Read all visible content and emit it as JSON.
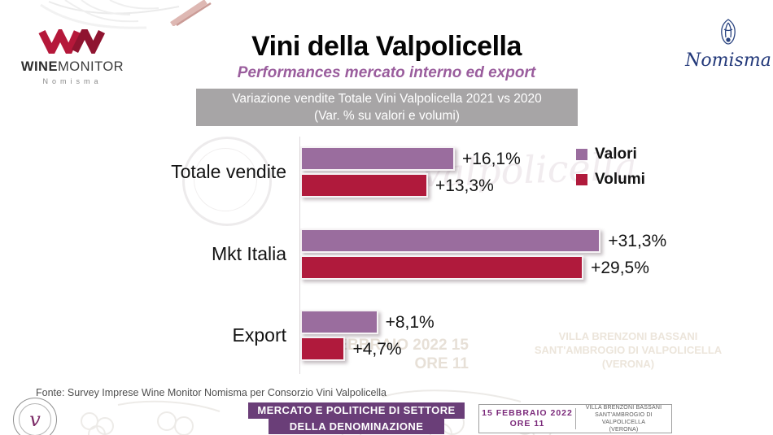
{
  "branding": {
    "wine_monitor": {
      "word_bold": "WINE",
      "word_light": "MONITOR",
      "sub": "Nomisma"
    },
    "nomisma": {
      "name": "Nomisma"
    }
  },
  "header": {
    "title": "Vini della Valpolicella",
    "subtitle": "Performances mercato interno ed export",
    "banner_line1": "Variazione vendite Totale Vini Valpolicella 2021 vs 2020",
    "banner_line2": "(Var. % su valori e volumi)"
  },
  "chart_data": {
    "type": "bar",
    "orientation": "horizontal",
    "title": "Variazione vendite Totale Vini Valpolicella 2021 vs 2020 (Var. % su valori e volumi)",
    "categories": [
      "Totale vendite",
      "Mkt Italia",
      "Export"
    ],
    "series": [
      {
        "name": "Valori",
        "color": "#9a6d9e",
        "values": [
          16.1,
          31.3,
          8.1
        ],
        "labels": [
          "+16,1%",
          "+31,3%",
          "+8,1%"
        ]
      },
      {
        "name": "Volumi",
        "color": "#b01a3c",
        "values": [
          13.3,
          29.5,
          4.7
        ],
        "labels": [
          "+13,3%",
          "+29,5%",
          "+4,7%"
        ]
      }
    ],
    "xlim": [
      0,
      35
    ],
    "grid": false,
    "legend_position": "right-top",
    "value_label_format": "italian decimal comma, prefixed +, suffixed %"
  },
  "watermark_ghost_text": {
    "script_word": "Valpolicella"
  },
  "footer": {
    "source": "Fonte: Survey Imprese Wine Monitor Nomisma per Consorzio Vini Valpolicella",
    "banner_line1": "MERCATO E POLITICHE DI SETTORE",
    "banner_line2": "DELLA DENOMINAZIONE",
    "event": {
      "date": "15 FEBBRAIO 2022",
      "time": "ORE 11",
      "venue_line1": "VILLA BRENZONI BASSANI",
      "venue_line2": "SANT'AMBROGIO DI VALPOLICELLA",
      "venue_line3": "(VERONA)"
    }
  },
  "colors": {
    "valori_purple": "#9a6d9e",
    "volumi_red": "#b01a3c",
    "subtitle_purple": "#9a5d9d",
    "gray_banner_bg": "#a7a5a6",
    "footer_banner_purple": "#6a3e78",
    "event_date_purple": "#7b2a7b",
    "nomisma_blue": "#23397a",
    "wm_red": "#b5183a"
  }
}
